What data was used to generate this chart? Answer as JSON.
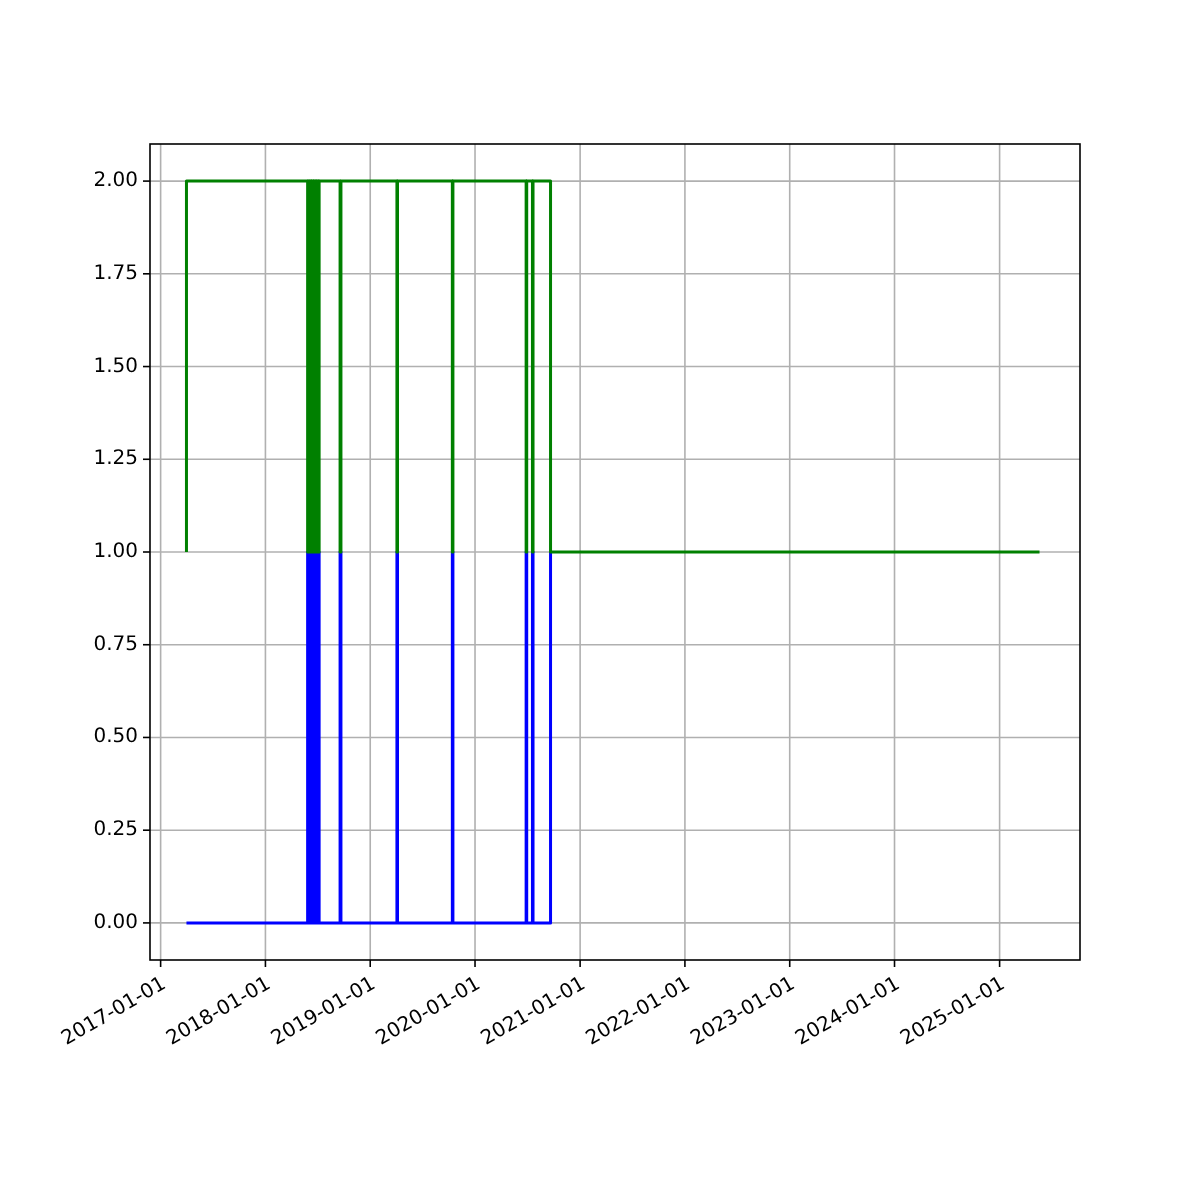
{
  "chart_data": {
    "type": "line",
    "grid": true,
    "line_style": "solid",
    "xlim": [
      "2016-11-25",
      "2025-10-08"
    ],
    "xticks": [
      "2017-01-01",
      "2018-01-01",
      "2019-01-01",
      "2020-01-01",
      "2021-01-01",
      "2022-01-01",
      "2023-01-01",
      "2024-01-01",
      "2025-01-01"
    ],
    "ylim": [
      -0.1,
      2.1
    ],
    "yticks": [
      {
        "value": 0,
        "label": "0.00"
      },
      {
        "value": 0.25,
        "label": "0.25"
      },
      {
        "value": 0.5,
        "label": "0.50"
      },
      {
        "value": 0.75,
        "label": "0.75"
      },
      {
        "value": 1,
        "label": "1.00"
      },
      {
        "value": 1.25,
        "label": "1.25"
      },
      {
        "value": 1.5,
        "label": "1.50"
      },
      {
        "value": 1.75,
        "label": "1.75"
      },
      {
        "value": 2,
        "label": "2.00"
      }
    ],
    "series": [
      {
        "color": "#0000ff",
        "x": [
          "2017-04-01",
          "2018-05-28",
          "2018-05-28",
          "2018-05-30",
          "2018-05-30",
          "2018-06-04",
          "2018-06-04",
          "2018-06-06",
          "2018-06-06",
          "2018-06-10",
          "2018-06-10",
          "2018-06-12",
          "2018-06-12",
          "2018-06-16",
          "2018-06-16",
          "2018-06-18",
          "2018-06-18",
          "2018-06-22",
          "2018-06-22",
          "2018-06-24",
          "2018-06-24",
          "2018-06-28",
          "2018-06-28",
          "2018-06-30",
          "2018-06-30",
          "2018-07-05",
          "2018-07-05",
          "2018-07-07",
          "2018-07-07",
          "2018-09-18",
          "2018-09-18",
          "2018-09-21",
          "2018-09-21",
          "2019-04-04",
          "2019-04-04",
          "2019-04-06",
          "2019-04-06",
          "2019-10-14",
          "2019-10-14",
          "2019-10-16",
          "2019-10-16",
          "2020-06-27",
          "2020-06-27",
          "2020-06-29",
          "2020-06-29",
          "2020-07-19",
          "2020-07-19",
          "2020-07-21",
          "2020-07-21",
          "2020-09-20",
          "2020-09-20"
        ],
        "values": [
          0,
          0,
          1,
          1,
          0,
          0,
          1,
          1,
          0,
          0,
          1,
          1,
          0,
          0,
          1,
          1,
          0,
          0,
          1,
          1,
          0,
          0,
          1,
          1,
          0,
          0,
          1,
          1,
          0,
          0,
          1,
          1,
          0,
          0,
          1,
          1,
          0,
          0,
          1,
          1,
          0,
          0,
          1,
          1,
          0,
          0,
          1,
          1,
          0,
          0,
          1
        ]
      },
      {
        "color": "#008000",
        "x": [
          "2017-04-01",
          "2017-04-01",
          "2018-05-28",
          "2018-05-28",
          "2018-05-30",
          "2018-05-30",
          "2018-06-04",
          "2018-06-04",
          "2018-06-06",
          "2018-06-06",
          "2018-06-10",
          "2018-06-10",
          "2018-06-12",
          "2018-06-12",
          "2018-06-16",
          "2018-06-16",
          "2018-06-18",
          "2018-06-18",
          "2018-06-22",
          "2018-06-22",
          "2018-06-24",
          "2018-06-24",
          "2018-06-28",
          "2018-06-28",
          "2018-06-30",
          "2018-06-30",
          "2018-07-05",
          "2018-07-05",
          "2018-07-07",
          "2018-07-07",
          "2018-09-18",
          "2018-09-18",
          "2018-09-21",
          "2018-09-21",
          "2019-04-04",
          "2019-04-04",
          "2019-04-06",
          "2019-04-06",
          "2019-10-14",
          "2019-10-14",
          "2019-10-16",
          "2019-10-16",
          "2020-06-27",
          "2020-06-27",
          "2020-06-29",
          "2020-06-29",
          "2020-07-19",
          "2020-07-19",
          "2020-07-21",
          "2020-07-21",
          "2020-09-20",
          "2020-09-20",
          "2025-05-20"
        ],
        "values": [
          1,
          2,
          2,
          1,
          1,
          2,
          2,
          1,
          1,
          2,
          2,
          1,
          1,
          2,
          2,
          1,
          1,
          2,
          2,
          1,
          1,
          2,
          2,
          1,
          1,
          2,
          2,
          1,
          1,
          2,
          2,
          1,
          1,
          2,
          2,
          1,
          1,
          2,
          2,
          1,
          1,
          2,
          2,
          1,
          1,
          2,
          2,
          1,
          1,
          2,
          2,
          1,
          1
        ]
      }
    ]
  }
}
